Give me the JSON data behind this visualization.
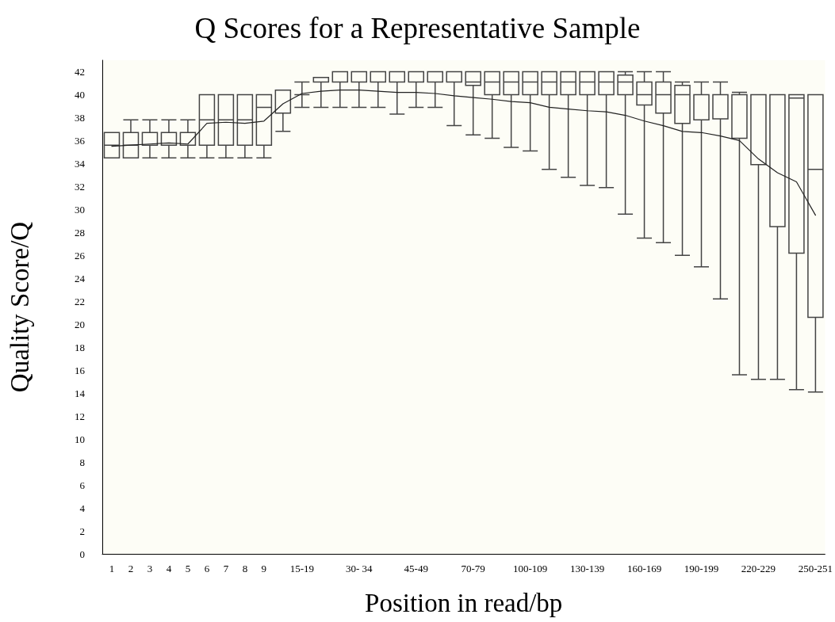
{
  "chart_data": {
    "type": "box",
    "title": "Q Scores for a Representative Sample",
    "xlabel": "Position in read/bp",
    "ylabel": "Quality Score/Q",
    "categories": [
      "1",
      "2",
      "3",
      "4",
      "5",
      "6",
      "7",
      "8",
      "9",
      null,
      "15-19",
      null,
      null,
      "30- 34",
      null,
      null,
      "45-49",
      null,
      null,
      "70-79",
      null,
      null,
      "100-109",
      null,
      null,
      "130-139",
      null,
      null,
      "160-169",
      null,
      null,
      "190-199",
      null,
      null,
      "220-229",
      null,
      null,
      "250-251"
    ],
    "ylim": [
      0,
      43
    ],
    "yticks": [
      0,
      2,
      4,
      6,
      8,
      10,
      12,
      14,
      16,
      18,
      20,
      22,
      24,
      26,
      28,
      30,
      32,
      34,
      36,
      38,
      40,
      42
    ],
    "series": [
      {
        "color": "#444444",
        "boxes": [
          {
            "low": 34.5,
            "q1": 34.5,
            "median": 35.6,
            "q3": 36.7,
            "high": 36.7
          },
          {
            "low": 34.5,
            "q1": 34.5,
            "median": 35.6,
            "q3": 36.7,
            "high": 37.8
          },
          {
            "low": 34.5,
            "q1": 35.6,
            "median": 35.6,
            "q3": 36.7,
            "high": 37.8
          },
          {
            "low": 34.5,
            "q1": 35.6,
            "median": 35.6,
            "q3": 36.7,
            "high": 37.8
          },
          {
            "low": 34.5,
            "q1": 35.6,
            "median": 35.6,
            "q3": 36.7,
            "high": 37.8
          },
          {
            "low": 34.5,
            "q1": 35.6,
            "median": 37.8,
            "q3": 40,
            "high": 40
          },
          {
            "low": 34.5,
            "q1": 35.6,
            "median": 37.8,
            "q3": 40,
            "high": 40
          },
          {
            "low": 34.5,
            "q1": 35.6,
            "median": 37.8,
            "q3": 40,
            "high": 40
          },
          {
            "low": 34.5,
            "q1": 35.6,
            "median": 38.9,
            "q3": 40,
            "high": 40
          },
          {
            "low": 36.8,
            "q1": 38.4,
            "median": 38.4,
            "q3": 40.4,
            "high": 40.4
          },
          {
            "low": 38.9,
            "q1": 40,
            "median": 40,
            "q3": 40,
            "high": 41.1
          },
          {
            "low": 38.9,
            "q1": 41.1,
            "median": 41.1,
            "q3": 41.5,
            "high": 41.5
          },
          {
            "low": 38.9,
            "q1": 41.1,
            "median": 41.1,
            "q3": 42,
            "high": 42
          },
          {
            "low": 38.9,
            "q1": 41.1,
            "median": 41.1,
            "q3": 42,
            "high": 42
          },
          {
            "low": 38.9,
            "q1": 41.1,
            "median": 41.1,
            "q3": 42,
            "high": 42
          },
          {
            "low": 38.3,
            "q1": 41.1,
            "median": 41.1,
            "q3": 42,
            "high": 42
          },
          {
            "low": 38.9,
            "q1": 41.1,
            "median": 41.1,
            "q3": 42,
            "high": 42
          },
          {
            "low": 38.9,
            "q1": 41.1,
            "median": 41.1,
            "q3": 42,
            "high": 42
          },
          {
            "low": 37.3,
            "q1": 41.1,
            "median": 41.1,
            "q3": 42,
            "high": 42
          },
          {
            "low": 36.5,
            "q1": 40.8,
            "median": 41.1,
            "q3": 42,
            "high": 42
          },
          {
            "low": 36.2,
            "q1": 40,
            "median": 41.1,
            "q3": 42,
            "high": 42
          },
          {
            "low": 35.4,
            "q1": 40,
            "median": 41.1,
            "q3": 42,
            "high": 42
          },
          {
            "low": 35.1,
            "q1": 40,
            "median": 41.1,
            "q3": 42,
            "high": 42
          },
          {
            "low": 33.5,
            "q1": 40,
            "median": 41.1,
            "q3": 42,
            "high": 42
          },
          {
            "low": 32.8,
            "q1": 40,
            "median": 41.1,
            "q3": 42,
            "high": 42
          },
          {
            "low": 32.1,
            "q1": 40,
            "median": 41.1,
            "q3": 42,
            "high": 42
          },
          {
            "low": 31.9,
            "q1": 40,
            "median": 41.1,
            "q3": 42,
            "high": 42
          },
          {
            "low": 29.6,
            "q1": 40,
            "median": 41.1,
            "q3": 41.7,
            "high": 42
          },
          {
            "low": 27.5,
            "q1": 39.1,
            "median": 40,
            "q3": 41.1,
            "high": 42
          },
          {
            "low": 27.1,
            "q1": 38.4,
            "median": 40,
            "q3": 41.1,
            "high": 42
          },
          {
            "low": 26,
            "q1": 37.5,
            "median": 40,
            "q3": 40.8,
            "high": 41.1
          },
          {
            "low": 25,
            "q1": 37.8,
            "median": 40,
            "q3": 40,
            "high": 41.1
          },
          {
            "low": 22.2,
            "q1": 37.9,
            "median": 40,
            "q3": 40,
            "high": 41.1
          },
          {
            "low": 15.6,
            "q1": 36.2,
            "median": 40,
            "q3": 40,
            "high": 40.2
          },
          {
            "low": 15.2,
            "q1": 33.9,
            "median": 40,
            "q3": 40,
            "high": 40
          },
          {
            "low": 15.2,
            "q1": 28.5,
            "median": 40,
            "q3": 40,
            "high": 40
          },
          {
            "low": 14.3,
            "q1": 26.2,
            "median": 39.7,
            "q3": 40,
            "high": 40
          },
          {
            "low": 14.1,
            "q1": 20.6,
            "median": 33.5,
            "q3": 40,
            "high": 40
          }
        ]
      },
      {
        "type": "line",
        "color": "#222222",
        "values": [
          35.5,
          35.6,
          35.7,
          35.8,
          35.7,
          37.5,
          37.6,
          37.5,
          37.7,
          39.2,
          40.1,
          40.3,
          40.4,
          40.4,
          40.3,
          40.2,
          40.2,
          40.1,
          39.9,
          39.75,
          39.6,
          39.4,
          39.3,
          38.9,
          38.75,
          38.6,
          38.5,
          38.2,
          37.7,
          37.3,
          36.8,
          36.7,
          36.4,
          36,
          34.4,
          33.2,
          32.4,
          29.5
        ]
      }
    ]
  }
}
